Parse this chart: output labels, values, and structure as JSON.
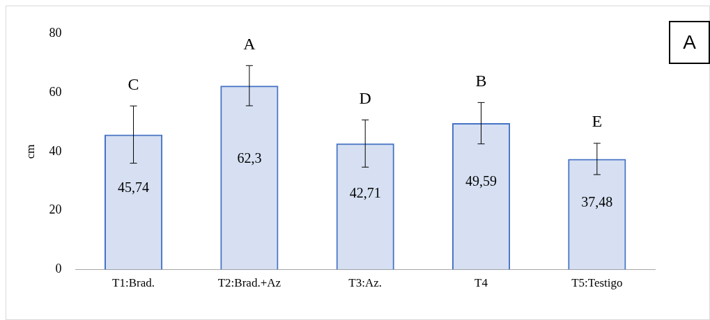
{
  "chart_data": {
    "type": "bar",
    "ylabel": "cm",
    "categories": [
      "T1:Brad.",
      "T2:Brad.+Az",
      "T3:Az.",
      "T4",
      "T5:Testigo"
    ],
    "values": [
      45.74,
      62.3,
      42.71,
      49.59,
      37.48
    ],
    "value_labels": [
      "45,74",
      "62,3",
      "42,71",
      "49,59",
      "37,48"
    ],
    "errors": [
      9.7,
      6.8,
      8,
      7,
      5.3
    ],
    "color": "#4472c4",
    "ylim": [
      0,
      80
    ],
    "yticks": [
      0,
      20,
      40,
      60,
      80
    ],
    "grid": false,
    "legend": false,
    "annotations": [
      "C",
      "A",
      "D",
      "B",
      "E",
      "A"
    ]
  }
}
